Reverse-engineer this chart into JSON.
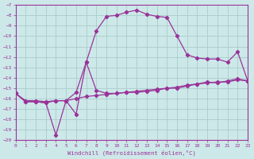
{
  "xlabel": "Windchill (Refroidissement éolien,°C)",
  "background_color": "#cde8e8",
  "grid_color": "#aacccc",
  "line_color": "#993399",
  "xlim": [
    0,
    23
  ],
  "ylim": [
    -20,
    -7
  ],
  "x_ticks": [
    0,
    1,
    2,
    3,
    4,
    5,
    6,
    7,
    8,
    9,
    10,
    11,
    12,
    13,
    14,
    15,
    16,
    17,
    18,
    19,
    20,
    21,
    22,
    23
  ],
  "y_ticks": [
    -7,
    -8,
    -9,
    -10,
    -11,
    -12,
    -13,
    -14,
    -15,
    -16,
    -17,
    -18,
    -19,
    -20
  ],
  "line_up_x": [
    0,
    1,
    2,
    3,
    4,
    5,
    6,
    7,
    8,
    9,
    10,
    11,
    12,
    13,
    14,
    15,
    16,
    17,
    18,
    19,
    20,
    21,
    22,
    23
  ],
  "line_up_y": [
    -15.5,
    -16.3,
    -16.3,
    -16.4,
    -16.2,
    -16.2,
    -15.4,
    -12.5,
    -9.5,
    -8.1,
    -8.0,
    -7.7,
    -7.5,
    -7.9,
    -8.1,
    -8.2,
    -10.0,
    -11.8,
    -12.1,
    -12.2,
    -12.2,
    -12.5,
    -11.5,
    -14.3
  ],
  "line_flat_x": [
    0,
    1,
    2,
    3,
    4,
    5,
    6,
    7,
    8,
    9,
    10,
    11,
    12,
    13,
    14,
    15,
    16,
    17,
    18,
    19,
    20,
    21,
    22,
    23
  ],
  "line_flat_y": [
    -15.5,
    -16.2,
    -16.2,
    -16.3,
    -16.2,
    -16.2,
    -16.0,
    -15.8,
    -15.7,
    -15.6,
    -15.5,
    -15.4,
    -15.3,
    -15.2,
    -15.1,
    -15.0,
    -14.9,
    -14.7,
    -14.6,
    -14.5,
    -14.4,
    -14.4,
    -14.2,
    -14.3
  ],
  "line_down_x": [
    0,
    1,
    2,
    3,
    4,
    5,
    6,
    7,
    8,
    9,
    10,
    11,
    12,
    13,
    14,
    15,
    16,
    17,
    18,
    19,
    20,
    21,
    22,
    23
  ],
  "line_down_y": [
    -15.5,
    -16.3,
    -16.3,
    -16.4,
    -19.5,
    -16.2,
    -17.5,
    -12.5,
    -15.2,
    -15.5,
    -15.5,
    -15.4,
    -15.4,
    -15.3,
    -15.2,
    -15.0,
    -15.0,
    -14.8,
    -14.6,
    -14.4,
    -14.5,
    -14.3,
    -14.1,
    -14.3
  ]
}
